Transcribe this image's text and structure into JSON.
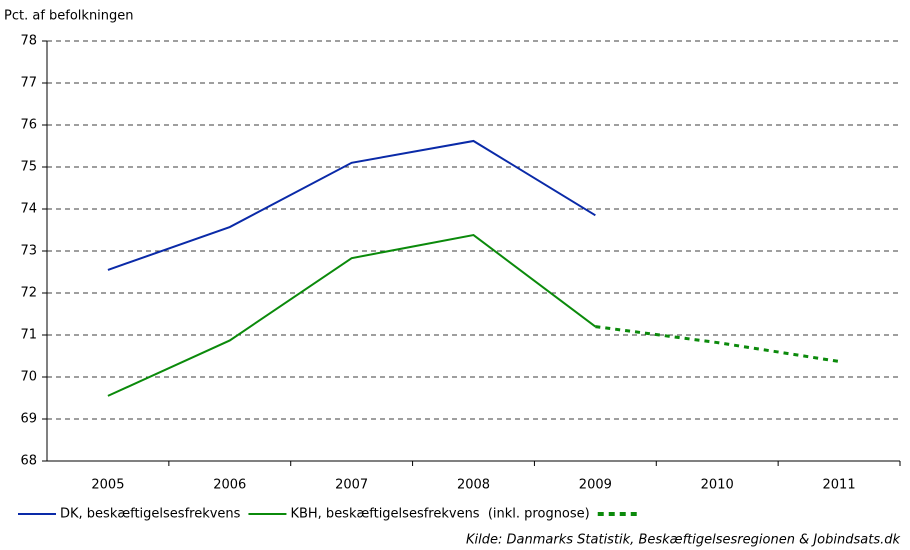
{
  "chart_data": {
    "type": "line",
    "y_label": "Pct. af befolkningen",
    "source": "Kilde: Danmarks Statistik, Beskæftigelsesregionen & Jobindsats.dk",
    "categories": [
      "2005",
      "2006",
      "2007",
      "2008",
      "2009",
      "2010",
      "2011"
    ],
    "series": [
      {
        "name": "DK, beskæftigelsesfrekvens",
        "color": "#0a2aa8",
        "style": "solid",
        "values": [
          72.55,
          73.57,
          75.1,
          75.62,
          73.85,
          null,
          null
        ]
      },
      {
        "name": "KBH, beskæftigelsesfrekvens  (inkl. prognose)",
        "color": "#0b8a0b",
        "style": "solid",
        "values": [
          69.55,
          70.87,
          72.83,
          73.38,
          71.2,
          null,
          null
        ]
      },
      {
        "color": "#0b8a0b",
        "style": "dotted",
        "values": [
          null,
          null,
          null,
          null,
          71.2,
          70.82,
          70.37
        ]
      }
    ],
    "ylim": [
      68,
      78
    ],
    "yticks": [
      68,
      69,
      70,
      71,
      72,
      73,
      74,
      75,
      76,
      77,
      78
    ],
    "grid": true
  }
}
